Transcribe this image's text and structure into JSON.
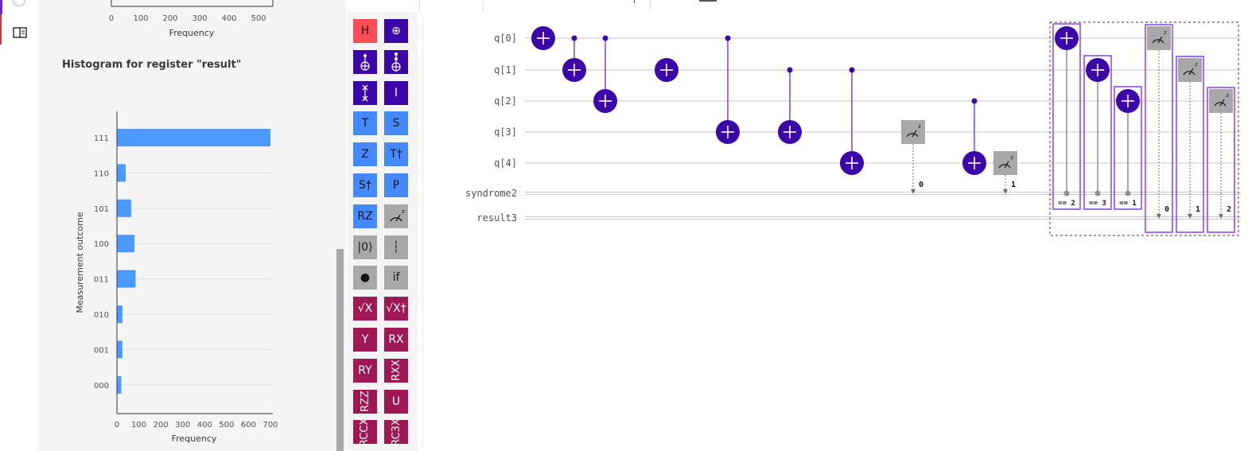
{
  "top_histogram": {
    "x_ticks": [
      "0",
      "100",
      "200",
      "300",
      "400",
      "500"
    ],
    "xlabel": "Frequency"
  },
  "chart_data": {
    "type": "bar",
    "orientation": "horizontal",
    "title": "Histogram for register \"result\"",
    "xlabel": "Frequency",
    "ylabel": "Measurement outcome",
    "categories": [
      "111",
      "110",
      "101",
      "100",
      "011",
      "010",
      "001",
      "000"
    ],
    "values": [
      700,
      40,
      65,
      80,
      85,
      25,
      25,
      20
    ],
    "x_ticks": [
      "0",
      "100",
      "200",
      "300",
      "400",
      "500",
      "600",
      "700"
    ],
    "xlim": [
      0,
      700
    ],
    "grid": true,
    "bar_color": "#4c99ff"
  },
  "palette": {
    "gates": [
      {
        "label": "H",
        "color": "red",
        "name": "gate-h"
      },
      {
        "label": "⊕",
        "color": "navy",
        "name": "gate-not"
      },
      {
        "label": "",
        "color": "navy",
        "name": "gate-cnot",
        "icon": "cnot"
      },
      {
        "label": "",
        "color": "navy",
        "name": "gate-toffoli",
        "icon": "toffoli"
      },
      {
        "label": "",
        "color": "navy",
        "name": "gate-swap",
        "icon": "swap"
      },
      {
        "label": "I",
        "color": "navy",
        "name": "gate-id"
      },
      {
        "label": "T",
        "color": "blue",
        "name": "gate-t"
      },
      {
        "label": "S",
        "color": "blue",
        "name": "gate-s"
      },
      {
        "label": "Z",
        "color": "blue",
        "name": "gate-z"
      },
      {
        "label": "T†",
        "color": "blue",
        "name": "gate-tdg"
      },
      {
        "label": "S†",
        "color": "blue",
        "name": "gate-sdg"
      },
      {
        "label": "P",
        "color": "blue",
        "name": "gate-p"
      },
      {
        "label": "RZ",
        "color": "blue",
        "name": "gate-rz"
      },
      {
        "label": "",
        "color": "gray",
        "name": "gate-measure",
        "icon": "meter"
      },
      {
        "label": "|0⟩",
        "color": "gray",
        "name": "gate-reset"
      },
      {
        "label": "┆",
        "color": "gray",
        "name": "gate-barrier"
      },
      {
        "label": "●",
        "color": "gray",
        "name": "gate-control"
      },
      {
        "label": "if",
        "color": "gray",
        "name": "gate-if"
      },
      {
        "label": "√X",
        "color": "maroon",
        "name": "gate-sx"
      },
      {
        "label": "√X†",
        "color": "maroon",
        "name": "gate-sxdg"
      },
      {
        "label": "Y",
        "color": "maroon",
        "name": "gate-y"
      },
      {
        "label": "RX",
        "color": "maroon",
        "name": "gate-rx"
      },
      {
        "label": "RY",
        "color": "maroon",
        "name": "gate-ry"
      },
      {
        "label": "RXX",
        "color": "maroon",
        "name": "gate-rxx",
        "vertical": true
      },
      {
        "label": "RZZ",
        "color": "maroon",
        "name": "gate-rzz",
        "vertical": true
      },
      {
        "label": "U",
        "color": "maroon",
        "name": "gate-u"
      },
      {
        "label": "RCCX",
        "color": "maroon",
        "name": "gate-rccx",
        "vertical": true
      },
      {
        "label": "RC3X",
        "color": "maroon",
        "name": "gate-rc3x",
        "vertical": true
      }
    ]
  },
  "circuit": {
    "qubits": [
      "q[0]",
      "q[1]",
      "q[2]",
      "q[3]",
      "q[4]"
    ],
    "classical": [
      "syndrome2",
      "result3"
    ],
    "cnots": [
      {
        "target": 0
      },
      {
        "control": 0,
        "target": 1
      },
      {
        "control": 0,
        "target": 2
      },
      {
        "target": 1
      },
      {
        "control": 0,
        "target": 3
      },
      {
        "control": 1,
        "target": 3
      },
      {
        "control": 1,
        "target": 4
      },
      {
        "control": 2,
        "target": 4
      }
    ],
    "syndrome_measures": [
      {
        "qubit": 3,
        "bit": "0"
      },
      {
        "qubit": 4,
        "bit": "1"
      }
    ],
    "conditional_x": [
      {
        "target": 0,
        "condition": "== 2"
      },
      {
        "target": 1,
        "condition": "== 3"
      },
      {
        "target": 2,
        "condition": "== 1"
      }
    ],
    "result_measures": [
      {
        "qubit": 0,
        "bit": "0"
      },
      {
        "qubit": 1,
        "bit": "1"
      },
      {
        "qubit": 2,
        "bit": "2"
      }
    ]
  },
  "colors": {
    "gate_navy": "#3b07a8",
    "highlight": "#8a3ffc",
    "measure_gray": "#a8a8a8",
    "bar_blue": "#4c99ff"
  }
}
